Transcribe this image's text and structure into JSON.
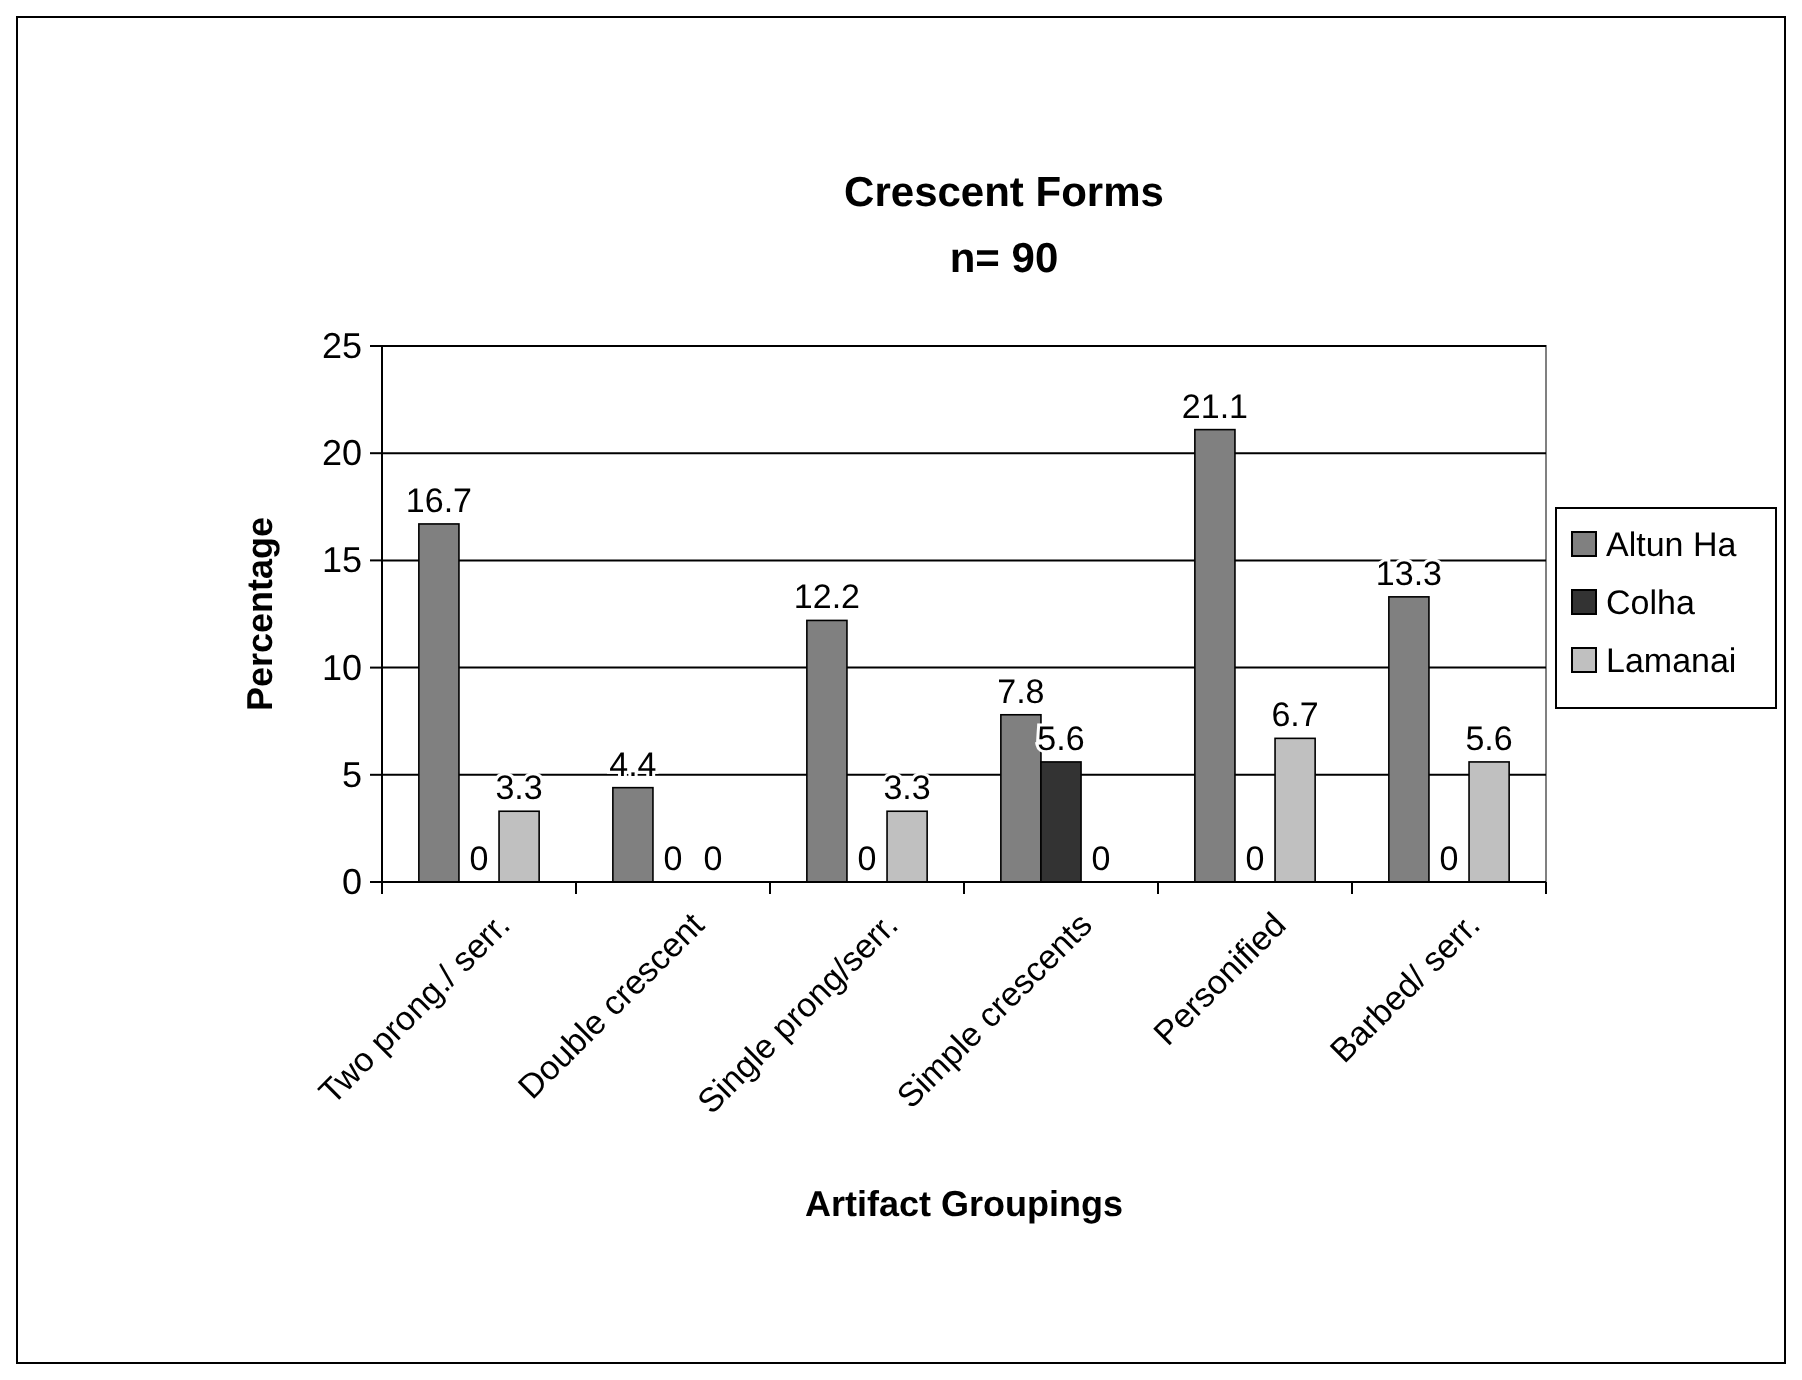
{
  "chart_data": {
    "type": "bar",
    "title": "Crescent Forms",
    "subtitle": "n= 90",
    "xlabel": "Artifact Groupings",
    "ylabel": "Percentage",
    "categories": [
      "Two prong./ serr.",
      "Double crescent",
      "Single prong/serr.",
      "Simple crescents",
      "Personified",
      "Barbed/ serr."
    ],
    "series": [
      {
        "name": "Altun Ha",
        "color": "#808080",
        "values": [
          16.7,
          4.4,
          12.2,
          7.8,
          21.1,
          13.3
        ]
      },
      {
        "name": "Colha",
        "color": "#333333",
        "values": [
          0,
          0,
          0,
          5.6,
          0,
          0
        ]
      },
      {
        "name": "Lamanai",
        "color": "#c0c0c0",
        "values": [
          3.3,
          0,
          3.3,
          0,
          6.7,
          5.6
        ]
      }
    ],
    "ylim": [
      0,
      25
    ],
    "yticks": [
      0,
      5,
      10,
      15,
      20,
      25
    ],
    "grid": "y",
    "legend": "right",
    "data_labels": true
  }
}
